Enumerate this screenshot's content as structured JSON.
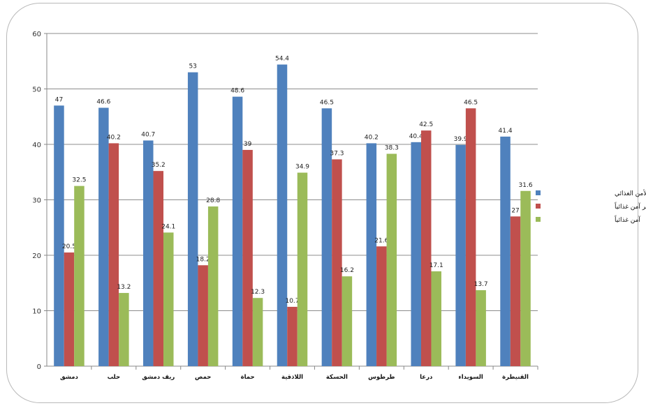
{
  "chart_data": {
    "type": "bar",
    "title": "",
    "xlabel": "",
    "ylabel": "",
    "ylim": [
      0,
      60
    ],
    "yticks": [
      0,
      10,
      20,
      30,
      40,
      50,
      60
    ],
    "grid": true,
    "legend_position": "right",
    "categories": [
      "دمشق",
      "حلب",
      "ريف دمشق",
      "حمص",
      "حماة",
      "اللاذقية",
      "الحسكة",
      "طرطوس",
      "درعا",
      "السويداء",
      "القنيطرة"
    ],
    "series": [
      {
        "name": "معرض لانعدام الأمن الغذائي",
        "color": "#4f81bd",
        "values": [
          47,
          46.6,
          40.7,
          53,
          48.6,
          54.4,
          46.5,
          40.2,
          40.4,
          39.9,
          41.4
        ]
      },
      {
        "name": "غير آمن غذائياً",
        "color": "#c0504d",
        "values": [
          20.5,
          40.2,
          35.2,
          18.2,
          39,
          10.7,
          37.3,
          21.6,
          42.5,
          46.5,
          27
        ]
      },
      {
        "name": "آمن غذائياً",
        "color": "#9bbb59",
        "values": [
          32.5,
          13.2,
          24.1,
          28.8,
          12.3,
          34.9,
          16.2,
          38.3,
          17.1,
          13.7,
          31.6
        ]
      }
    ]
  }
}
